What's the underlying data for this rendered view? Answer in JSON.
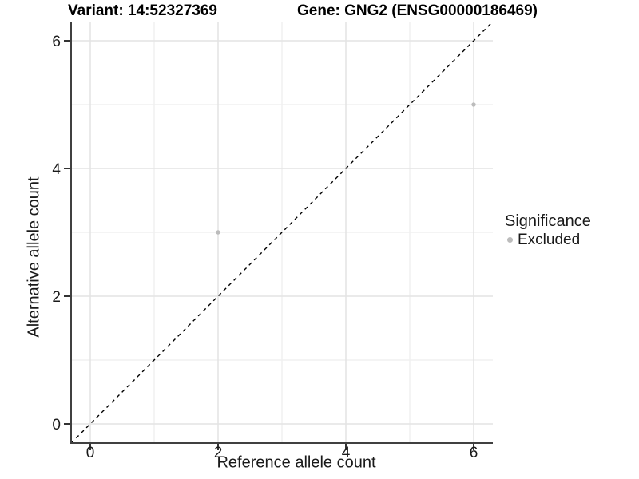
{
  "header": {
    "variant_title": "Variant: 14:52327369",
    "gene_title": "Gene: GNG2 (ENSG00000186469)"
  },
  "chart_data": {
    "type": "scatter",
    "title": "Variant: 14:52327369   Gene: GNG2 (ENSG00000186469)",
    "xlabel": "Reference allele count",
    "ylabel": "Alternative allele count",
    "xlim": [
      -0.3,
      6.3
    ],
    "ylim": [
      -0.3,
      6.3
    ],
    "x_ticks": [
      0,
      2,
      4,
      6
    ],
    "y_ticks": [
      0,
      2,
      4,
      6
    ],
    "x_minor_ticks": [
      1,
      3,
      5
    ],
    "y_minor_ticks": [
      1,
      3,
      5
    ],
    "grid": "major-and-minor",
    "background": "#ffffff",
    "series": [
      {
        "name": "Excluded",
        "color": "#bcbcbc",
        "points": [
          [
            2,
            3
          ],
          [
            6,
            5
          ]
        ]
      }
    ],
    "reference_line": {
      "kind": "y-equals-x",
      "from": [
        -0.3,
        -0.3
      ],
      "to": [
        6.3,
        6.3
      ],
      "style": "dashed",
      "color": "#000000"
    },
    "legend": {
      "title": "Significance",
      "position": "right",
      "items": [
        {
          "label": "Excluded",
          "color": "#bcbcbc"
        }
      ]
    }
  }
}
